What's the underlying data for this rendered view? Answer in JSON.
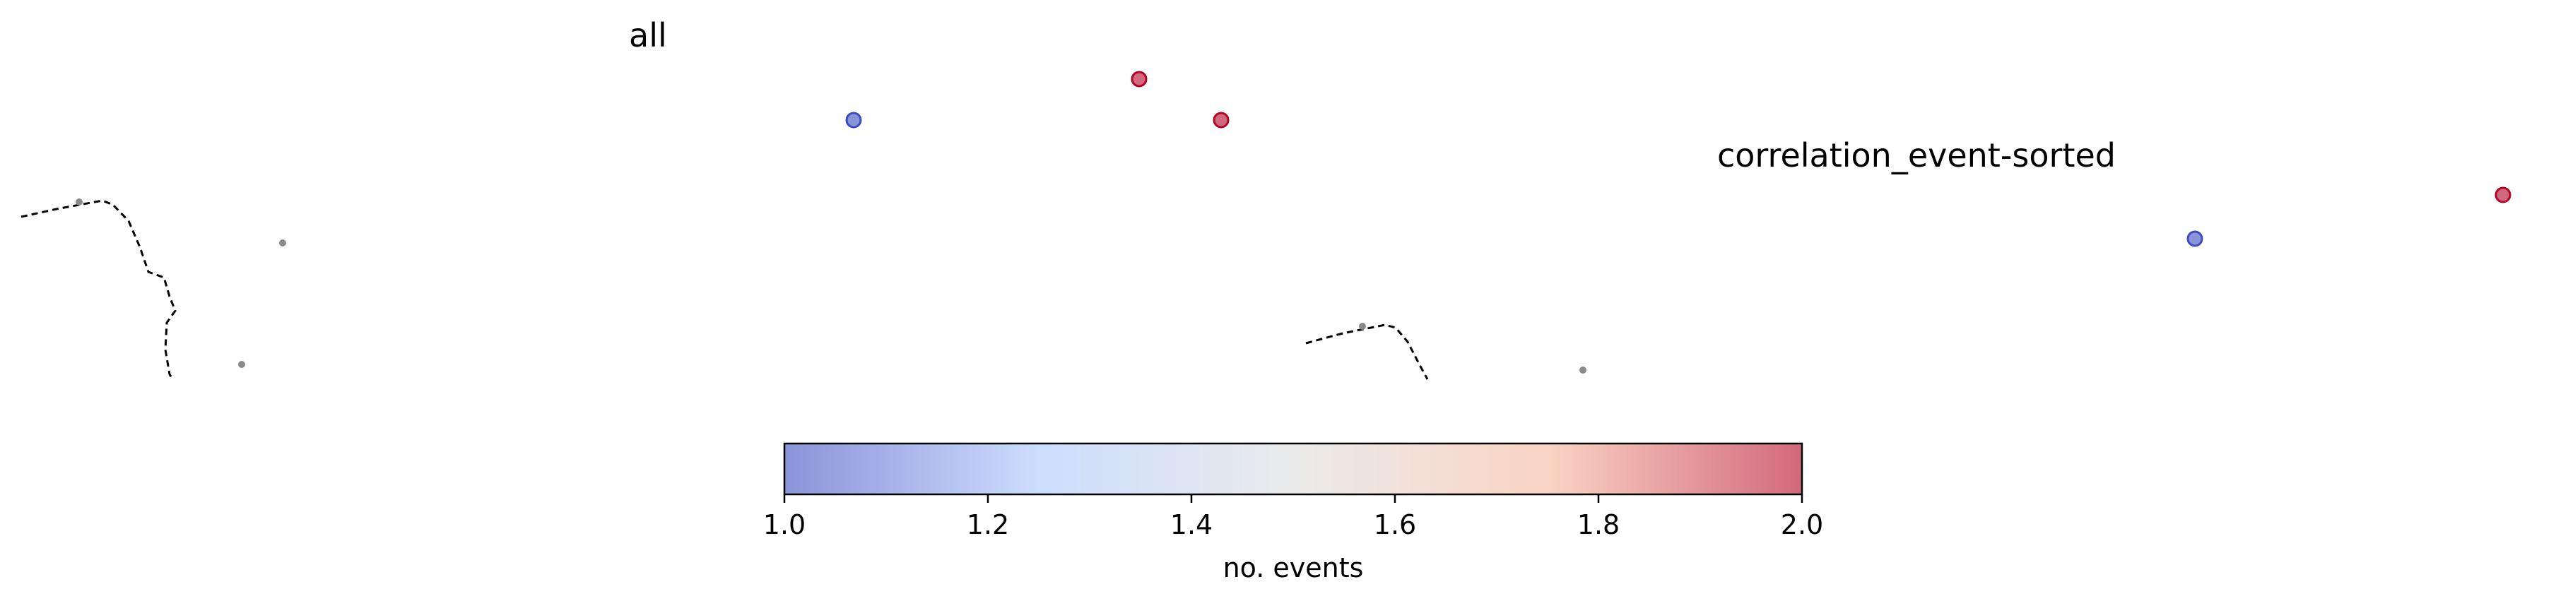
{
  "colors": {
    "low": "#3b4cc0",
    "mid": "#dddddd",
    "high": "#b40426",
    "border": "#7a7a7a",
    "outline": "#000000",
    "background_point": "#8a8a8a"
  },
  "colorbar": {
    "label": "no. events",
    "vmin": 1.0,
    "vmax": 2.0,
    "ticks": [
      "1.0",
      "1.2",
      "1.4",
      "1.6",
      "1.8",
      "2.0"
    ],
    "colormap": "coolwarm"
  },
  "chart_data": [
    {
      "type": "scatter",
      "title": "all",
      "xlabel": "",
      "ylabel": "",
      "axes_visible": false,
      "points": [
        {
          "value": 1
        },
        {
          "value": 2
        },
        {
          "value": 2
        }
      ]
    },
    {
      "type": "scatter",
      "title": "correlation_event-sorted",
      "xlabel": "",
      "ylabel": "",
      "axes_visible": false,
      "points": [
        {
          "value": 1
        },
        {
          "value": 2
        }
      ]
    }
  ]
}
